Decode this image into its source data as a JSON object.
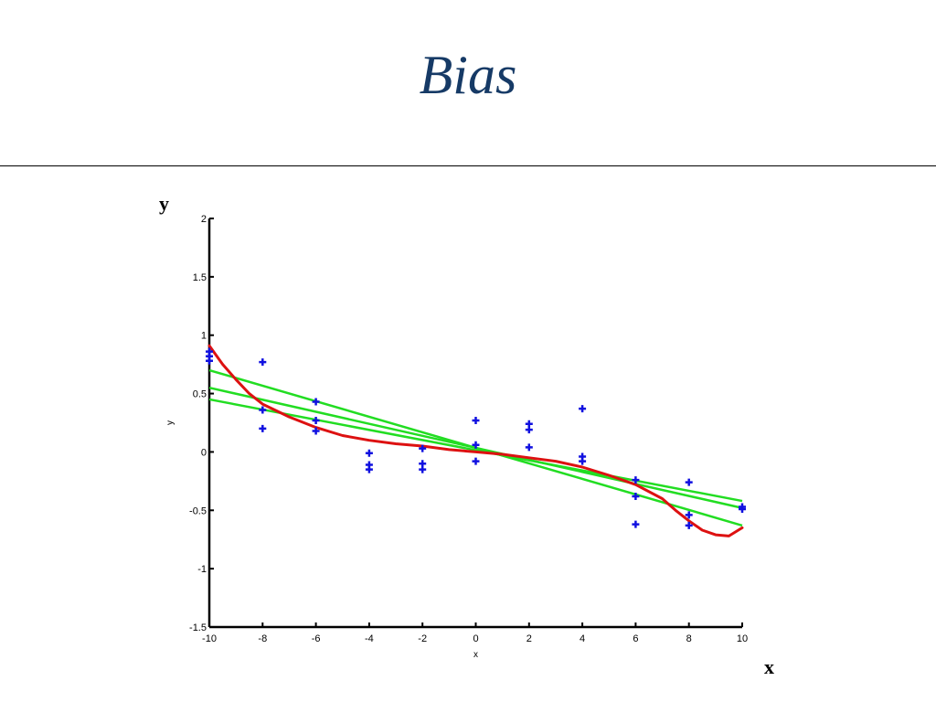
{
  "slide": {
    "title": "Bias",
    "y_label": "y",
    "x_label": "x"
  },
  "chart_data": {
    "type": "scatter",
    "xlabel": "x",
    "ylabel": "y",
    "xlim": [
      -10,
      10
    ],
    "ylim": [
      -1.5,
      2
    ],
    "x_ticks": [
      -10,
      -8,
      -6,
      -4,
      -2,
      0,
      2,
      4,
      6,
      8,
      10
    ],
    "x_tick_labels": [
      "-10",
      "-8",
      "-6",
      "-4",
      "-2",
      "0",
      "2",
      "4",
      "6",
      "8",
      "10"
    ],
    "y_ticks": [
      -1.5,
      -1,
      -0.5,
      0,
      0.5,
      1,
      1.5,
      2
    ],
    "y_tick_labels": [
      "-1.5",
      "-1",
      "-0.5",
      "0",
      "0.5",
      "1",
      "1.5",
      "2"
    ],
    "colors": {
      "points": "#1010e0",
      "fits": "#22dd22",
      "target": "#dd1111",
      "axis": "#000000"
    },
    "points": [
      {
        "x": -10,
        "y": 0.86
      },
      {
        "x": -10,
        "y": 0.82
      },
      {
        "x": -10,
        "y": 0.78
      },
      {
        "x": -8,
        "y": 0.77
      },
      {
        "x": -8,
        "y": 0.36
      },
      {
        "x": -8,
        "y": 0.2
      },
      {
        "x": -6,
        "y": 0.43
      },
      {
        "x": -6,
        "y": 0.27
      },
      {
        "x": -6,
        "y": 0.18
      },
      {
        "x": -4,
        "y": -0.01
      },
      {
        "x": -4,
        "y": -0.11
      },
      {
        "x": -4,
        "y": -0.15
      },
      {
        "x": -2,
        "y": 0.03
      },
      {
        "x": -2,
        "y": -0.1
      },
      {
        "x": -2,
        "y": -0.15
      },
      {
        "x": 0,
        "y": 0.27
      },
      {
        "x": 0,
        "y": 0.06
      },
      {
        "x": 0,
        "y": -0.08
      },
      {
        "x": 2,
        "y": 0.24
      },
      {
        "x": 2,
        "y": 0.19
      },
      {
        "x": 2,
        "y": 0.04
      },
      {
        "x": 4,
        "y": 0.37
      },
      {
        "x": 4,
        "y": -0.04
      },
      {
        "x": 4,
        "y": -0.08
      },
      {
        "x": 6,
        "y": -0.24
      },
      {
        "x": 6,
        "y": -0.38
      },
      {
        "x": 6,
        "y": -0.62
      },
      {
        "x": 8,
        "y": -0.26
      },
      {
        "x": 8,
        "y": -0.54
      },
      {
        "x": 8,
        "y": -0.63
      },
      {
        "x": 10,
        "y": -0.47
      },
      {
        "x": 10,
        "y": -0.49
      }
    ],
    "fit_lines": [
      {
        "x": [
          -10,
          10
        ],
        "y": [
          0.7,
          -0.63
        ]
      },
      {
        "x": [
          -10,
          10
        ],
        "y": [
          0.55,
          -0.48
        ]
      },
      {
        "x": [
          -10,
          10
        ],
        "y": [
          0.45,
          -0.42
        ]
      }
    ],
    "target_curve": {
      "x": [
        -10,
        -9.5,
        -9,
        -8.5,
        -8,
        -7,
        -6,
        -5,
        -4,
        -3,
        -2,
        -1,
        0,
        1,
        2,
        3,
        4,
        5,
        6,
        7,
        7.5,
        8,
        8.5,
        9,
        9.5,
        10
      ],
      "y": [
        0.91,
        0.75,
        0.62,
        0.5,
        0.41,
        0.3,
        0.21,
        0.14,
        0.1,
        0.07,
        0.05,
        0.02,
        0.0,
        -0.02,
        -0.05,
        -0.08,
        -0.13,
        -0.2,
        -0.28,
        -0.4,
        -0.5,
        -0.59,
        -0.67,
        -0.71,
        -0.72,
        -0.65
      ]
    }
  }
}
